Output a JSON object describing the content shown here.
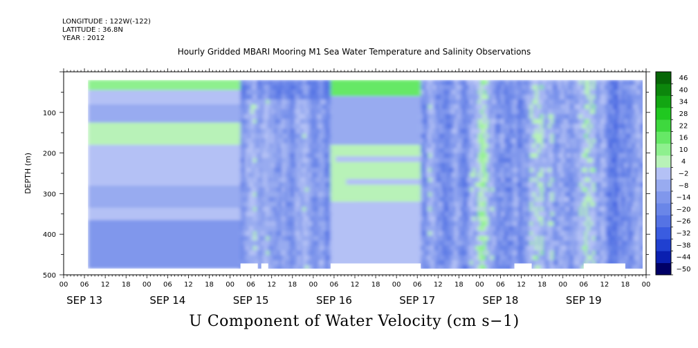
{
  "header": {
    "longitude": "LONGITUDE : 122W(-122)",
    "latitude": "LATITUDE : 36.8N",
    "year": "YEAR : 2012",
    "title": "Hourly Gridded MBARI Mooring M1 Sea Water Temperature and Salinity Observations",
    "variable_title": "U Component of Water Velocity (cm s−1)"
  },
  "chart_data": {
    "type": "heatmap",
    "title": "Hourly Gridded MBARI Mooring M1 Sea Water Temperature and Salinity Observations",
    "xlabel": "",
    "ylabel": "DEPTH (m)",
    "colorbar_label": "U Component of Water Velocity (cm s−1)",
    "x_hours_range": [
      0,
      168
    ],
    "ylim": [
      500,
      0
    ],
    "y_ticks": [
      100,
      200,
      300,
      400,
      500
    ],
    "x_hour_tick_labels": [
      "00",
      "06",
      "12",
      "18",
      "00",
      "06",
      "12",
      "18",
      "00",
      "06",
      "12",
      "18",
      "00",
      "06",
      "12",
      "18",
      "00",
      "06",
      "12",
      "18",
      "00",
      "06",
      "12",
      "18",
      "00",
      "06",
      "12",
      "18",
      "00"
    ],
    "day_labels": [
      "SEP 13",
      "SEP 14",
      "SEP 15",
      "SEP 16",
      "SEP 17",
      "SEP 18",
      "SEP 19"
    ],
    "colorbar_levels": [
      -50,
      -44,
      -38,
      -32,
      -26,
      -20,
      -14,
      -8,
      -2,
      4,
      10,
      16,
      22,
      28,
      34,
      40,
      46
    ],
    "colorbar_tick_labels": [
      "46",
      "40",
      "34",
      "28",
      "22",
      "16",
      "10",
      "4",
      "−2",
      "−8",
      "−14",
      "−20",
      "−26",
      "−32",
      "−38",
      "−44",
      "−50"
    ],
    "data_extent_hours": [
      7,
      167
    ],
    "data_extent_depth": [
      20,
      485
    ],
    "regimes": [
      {
        "segment": "SEP 13 07h - SEP 15 03h",
        "start_hour": 7,
        "end_hour": 51,
        "pattern": "horizontally uniform depth layers",
        "layers": [
          {
            "top": 20,
            "bottom": 45,
            "u": 14
          },
          {
            "top": 45,
            "bottom": 80,
            "u": 3
          },
          {
            "top": 80,
            "bottom": 125,
            "u": -6
          },
          {
            "top": 125,
            "bottom": 180,
            "u": 5
          },
          {
            "top": 180,
            "bottom": 280,
            "u": 2
          },
          {
            "top": 280,
            "bottom": 335,
            "u": -7
          },
          {
            "top": 335,
            "bottom": 365,
            "u": 3
          },
          {
            "top": 365,
            "bottom": 485,
            "u": -12
          }
        ]
      },
      {
        "segment": "SEP 15 03h - SEP 16 05h",
        "start_hour": 51,
        "end_hour": 77,
        "pattern": "vertical alternating streaks",
        "u_range": [
          -26,
          10
        ]
      },
      {
        "segment": "SEP 16 05h - SEP 17 07h",
        "start_hour": 77,
        "end_hour": 103,
        "pattern": "horizontal layers",
        "layers": [
          {
            "top": 20,
            "bottom": 60,
            "u": 18
          },
          {
            "top": 60,
            "bottom": 180,
            "u": -4
          },
          {
            "top": 180,
            "bottom": 320,
            "u": 6
          },
          {
            "top": 320,
            "bottom": 485,
            "u": 1
          }
        ]
      },
      {
        "segment": "SEP 17 07h - SEP 19 23h",
        "start_hour": 103,
        "end_hour": 167,
        "pattern": "vertical alternating streaks",
        "u_range": [
          -32,
          14
        ]
      }
    ],
    "gaps_near_bottom": [
      [
        51,
        56
      ],
      [
        57,
        59
      ],
      [
        77,
        103
      ],
      [
        130,
        135
      ],
      [
        150,
        162
      ]
    ]
  },
  "colors": {
    "background": "#ffffff",
    "axis": "#000000",
    "colormap_negative": [
      "#000066",
      "#0a1fb0",
      "#2040d0",
      "#3a5ce0",
      "#5573e4",
      "#6a86e8",
      "#8097ec",
      "#98abf0",
      "#b4c1f5"
    ],
    "colormap_positive": [
      "#b8f2b8",
      "#8ef08e",
      "#66e866",
      "#3ed83e",
      "#20c820",
      "#12a612",
      "#0c860c",
      "#076607"
    ]
  }
}
